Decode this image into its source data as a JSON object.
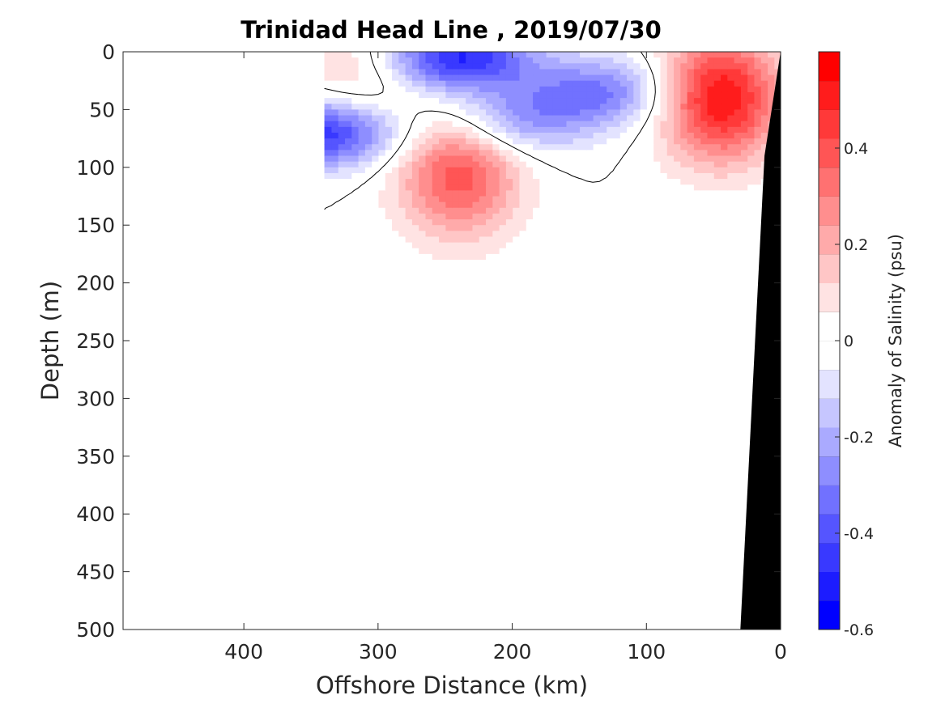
{
  "chart_data": {
    "type": "heatmap",
    "title": "Trinidad Head Line , 2019/07/30",
    "xlabel": "Offshore Distance (km)",
    "ylabel": "Depth (m)",
    "xlim": [
      490,
      0
    ],
    "ylim": [
      500,
      0
    ],
    "x_reversed": true,
    "y_reversed": true,
    "x_ticks": [
      "400",
      "300",
      "200",
      "100",
      "0"
    ],
    "x_tick_values": [
      400,
      300,
      200,
      100,
      0
    ],
    "y_ticks": [
      "0",
      "50",
      "100",
      "150",
      "200",
      "250",
      "300",
      "350",
      "400",
      "450",
      "500"
    ],
    "y_tick_values": [
      0,
      50,
      100,
      150,
      200,
      250,
      300,
      350,
      400,
      450,
      500
    ],
    "colorbar": {
      "label": "Anomaly of Salinity (psu)",
      "range": [
        -0.6,
        0.6
      ],
      "levels": 20,
      "ticks": [
        "0.4",
        "0.2",
        "0",
        "-0.2",
        "-0.4",
        "-0.6"
      ],
      "tick_values": [
        0.4,
        0.2,
        0,
        -0.2,
        -0.4,
        -0.6
      ],
      "colormap": "blue-white-red"
    },
    "data_coverage_km": [
      0,
      340
    ],
    "zero_contour": "black",
    "bathymetry_color": "#000000",
    "features": [
      {
        "kind": "maximum",
        "distance_km": 240,
        "depth_m": 105,
        "value": 0.4
      },
      {
        "kind": "maximum",
        "distance_km": 45,
        "depth_m": 40,
        "value": 0.55
      },
      {
        "kind": "minimum",
        "distance_km": 240,
        "depth_m": 5,
        "value": -0.5
      },
      {
        "kind": "minimum",
        "distance_km": 340,
        "depth_m": 70,
        "value": -0.5
      },
      {
        "kind": "minimum",
        "distance_km": 135,
        "depth_m": 35,
        "value": -0.3
      },
      {
        "kind": "minimum",
        "distance_km": 200,
        "depth_m": 60,
        "value": -0.25
      },
      {
        "kind": "maximum",
        "distance_km": 315,
        "depth_m": 25,
        "value": 0.15
      }
    ]
  }
}
